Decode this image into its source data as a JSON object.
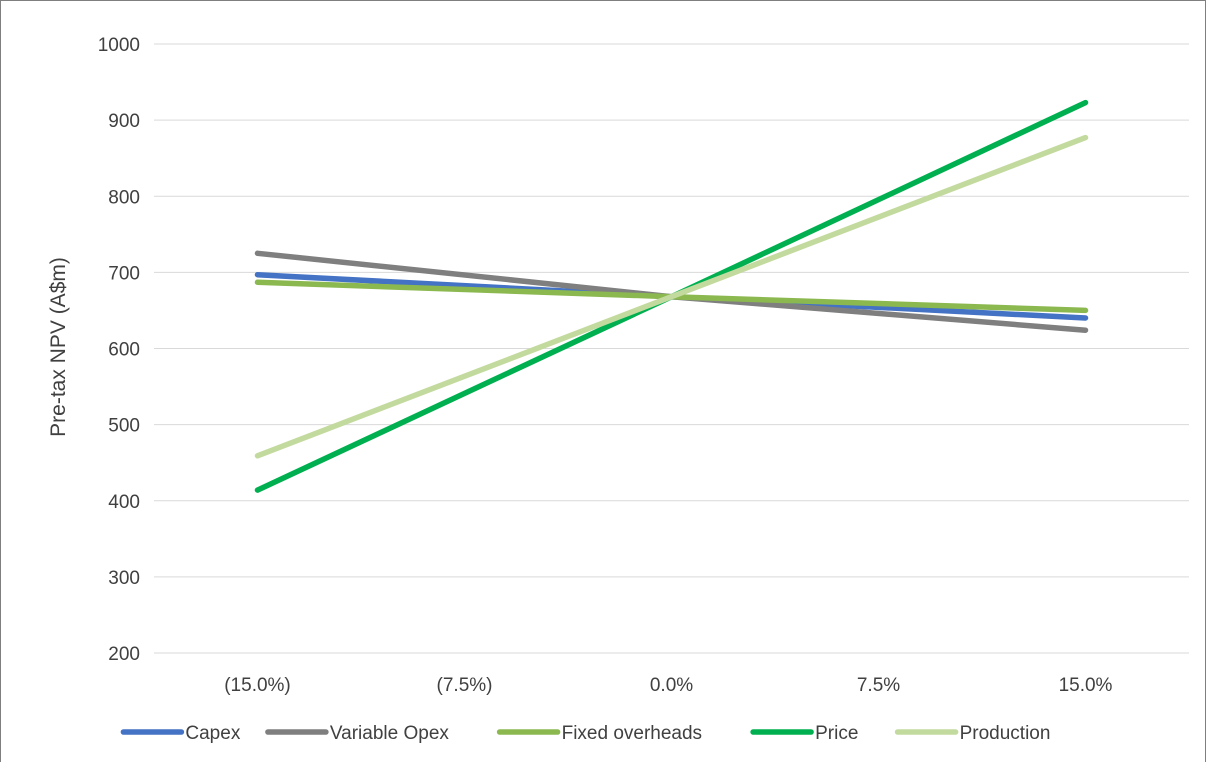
{
  "chart_data": {
    "type": "line",
    "title": "",
    "xlabel": "",
    "ylabel": "Pre-tax NPV (A$m)",
    "categories": [
      "(15.0%)",
      "(7.5%)",
      "0.0%",
      "7.5%",
      "15.0%"
    ],
    "ylim": [
      200,
      1000
    ],
    "yticks": [
      200,
      300,
      400,
      500,
      600,
      700,
      800,
      900,
      1000
    ],
    "grid": true,
    "legend": "bottom",
    "series": [
      {
        "name": "Capex",
        "color": "#4472C4",
        "values": [
          697,
          null,
          668,
          null,
          640
        ]
      },
      {
        "name": "Variable Opex",
        "color": "#7F7F7F",
        "values": [
          725,
          null,
          668,
          null,
          624
        ]
      },
      {
        "name": "Fixed overheads",
        "color": "#8CB850",
        "values": [
          687,
          null,
          668,
          null,
          650
        ]
      },
      {
        "name": "Price",
        "color": "#00B050",
        "values": [
          414,
          null,
          668,
          null,
          923
        ]
      },
      {
        "name": "Production",
        "color": "#C3DA9E",
        "values": [
          459,
          null,
          668,
          null,
          877
        ]
      }
    ]
  }
}
